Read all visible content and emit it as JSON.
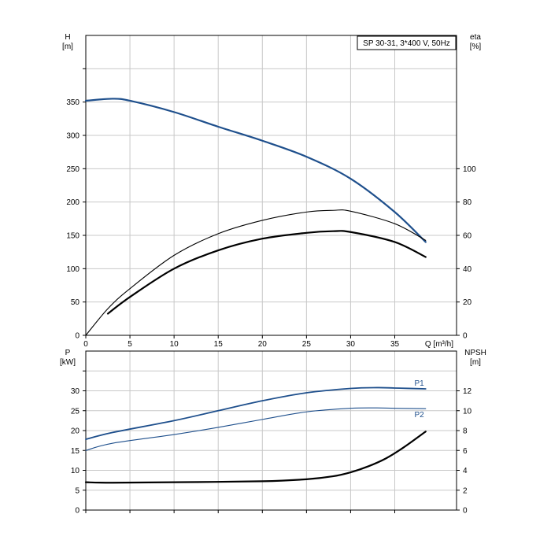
{
  "chart_data": [
    {
      "type": "line",
      "name": "head-efficiency",
      "legend_text": "SP 30-31, 3*400 V, 50Hz",
      "xlabel": "Q [m³/h]",
      "xlim": [
        0,
        42
      ],
      "x_ticks": [
        0,
        5,
        10,
        15,
        20,
        25,
        30,
        35
      ],
      "left_axis": {
        "label": "H",
        "unit": "[m]",
        "lim": [
          0,
          450
        ],
        "ticks": [
          0,
          50,
          100,
          150,
          200,
          250,
          300,
          350
        ]
      },
      "right_axis": {
        "label": "eta",
        "unit": "[%]",
        "lim": [
          0,
          180
        ],
        "ticks": [
          0,
          20,
          40,
          60,
          80,
          100
        ]
      },
      "grid": true,
      "series": [
        {
          "axis": "left",
          "color": "#1e4f8c",
          "width": 2.2,
          "x": [
            0,
            3,
            5,
            10,
            15,
            20,
            25,
            30,
            35,
            38.5
          ],
          "y": [
            352,
            355,
            352,
            335,
            313,
            292,
            268,
            235,
            185,
            140
          ]
        },
        {
          "axis": "right",
          "color": "#000000",
          "width": 1.1,
          "x": [
            0,
            2.5,
            5,
            10,
            15,
            20,
            25,
            28,
            30,
            35,
            38.5
          ],
          "y": [
            0,
            16,
            28,
            48,
            61,
            69,
            74,
            75,
            74.5,
            67,
            57
          ]
        },
        {
          "axis": "right",
          "color": "#000000",
          "width": 2.2,
          "x": [
            2.5,
            5,
            10,
            15,
            20,
            25,
            28,
            30,
            35,
            38.5
          ],
          "y": [
            13,
            23,
            40,
            51,
            58,
            61.5,
            62.5,
            62,
            56,
            47
          ]
        }
      ]
    },
    {
      "type": "line",
      "name": "power-npsh",
      "xlim": [
        0,
        42
      ],
      "x_ticks": [
        0,
        5,
        10,
        15,
        20,
        25,
        30,
        35
      ],
      "left_axis": {
        "label": "P",
        "unit": "[kW]",
        "lim": [
          0,
          40
        ],
        "ticks": [
          0,
          5,
          10,
          15,
          20,
          25,
          30
        ]
      },
      "right_axis": {
        "label": "NPSH",
        "unit": "[m]",
        "lim": [
          0,
          16
        ],
        "ticks": [
          0,
          2,
          4,
          6,
          8,
          10,
          12
        ]
      },
      "grid": true,
      "series": [
        {
          "axis": "left",
          "label": "P1",
          "color": "#1e4f8c",
          "width": 1.8,
          "x": [
            0,
            3,
            10,
            15,
            20,
            25,
            30,
            33,
            35,
            38.5
          ],
          "y": [
            17.8,
            19.5,
            22.5,
            25,
            27.5,
            29.5,
            30.6,
            30.8,
            30.7,
            30.5
          ]
        },
        {
          "axis": "left",
          "label": "P2",
          "color": "#1e4f8c",
          "width": 1.1,
          "x": [
            0,
            3,
            10,
            15,
            20,
            25,
            30,
            33,
            35,
            38.5
          ],
          "y": [
            15,
            16.8,
            19,
            20.8,
            22.8,
            24.7,
            25.6,
            25.7,
            25.6,
            25.5
          ]
        },
        {
          "axis": "right",
          "color": "#000000",
          "width": 2.2,
          "x": [
            0,
            3,
            10,
            20,
            25,
            28,
            30,
            32,
            34,
            36,
            38.5
          ],
          "y": [
            2.8,
            2.75,
            2.8,
            2.9,
            3.1,
            3.4,
            3.8,
            4.4,
            5.2,
            6.3,
            7.9
          ]
        }
      ]
    }
  ]
}
